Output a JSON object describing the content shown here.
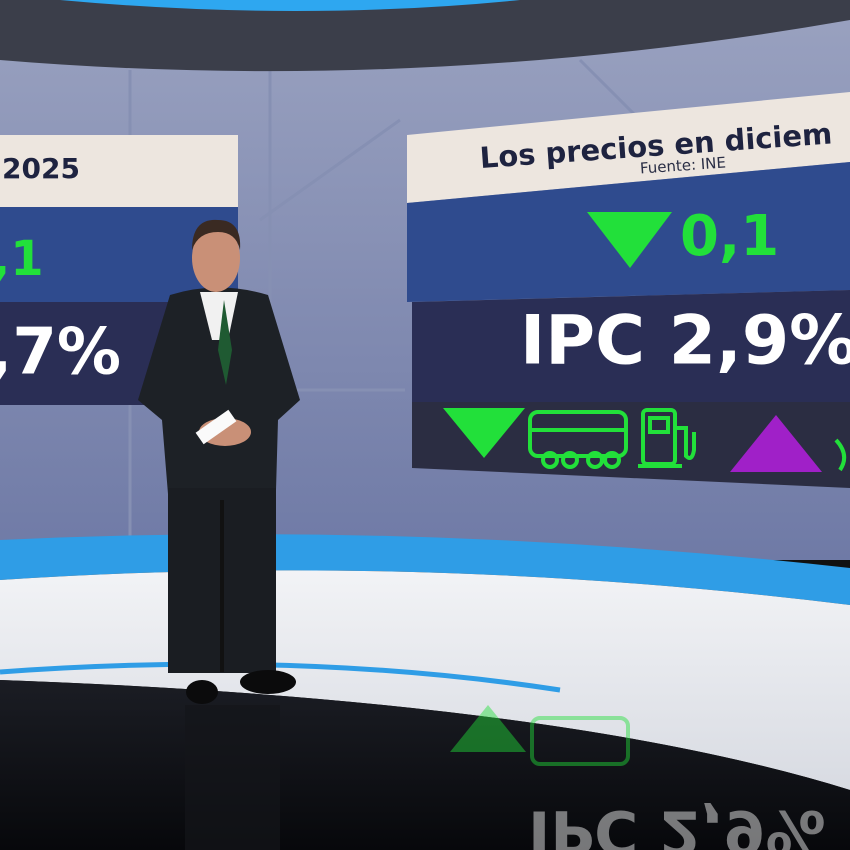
{
  "left_screen": {
    "title": "2025",
    "change": ",1",
    "rate": ",7%"
  },
  "right_screen": {
    "title": "Los precios en diciem",
    "source": "Fuente: INE",
    "change": "0,1",
    "rate": "IPC 2,9%"
  }
}
